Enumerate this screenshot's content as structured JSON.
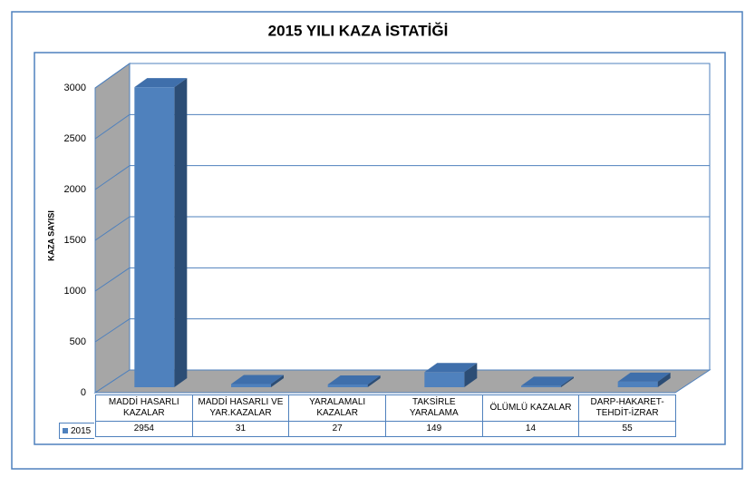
{
  "chart_data": {
    "type": "bar3d",
    "title": "2015 YILI KAZA İSTATİĞİ",
    "y_label": "KAZA SAYISI",
    "categories": [
      "MADDİ HASARLI KAZALAR",
      "MADDİ HASARLI VE YAR.KAZALAR",
      "YARALAMALI KAZALAR",
      "TAKSİRLE YARALAMA",
      "ÖLÜMLÜ KAZALAR",
      "DARP-HAKARET-TEHDİT-İZRAR"
    ],
    "series": [
      {
        "name": "2015",
        "color": "#4f81bd",
        "values": [
          2954,
          31,
          27,
          149,
          14,
          55
        ]
      }
    ],
    "ylim": [
      0,
      3000
    ],
    "yticks": [
      0,
      500,
      1000,
      1500,
      2000,
      2500,
      3000
    ],
    "grid": true,
    "data_table": true
  }
}
